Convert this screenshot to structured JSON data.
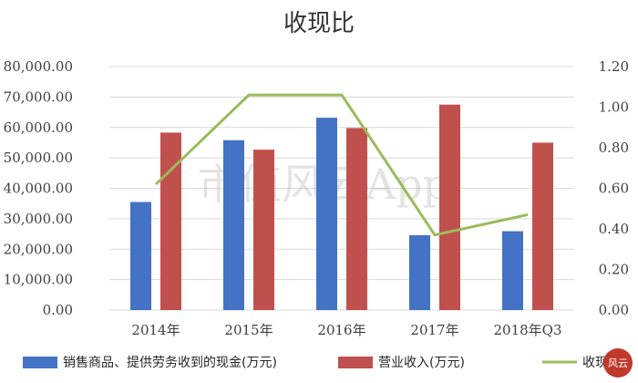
{
  "chart_data": {
    "type": "bar",
    "title": "收现比",
    "categories": [
      "2014年",
      "2015年",
      "2016年",
      "2017年",
      "2018年Q3"
    ],
    "series": [
      {
        "name": "销售商品、提供劳务收到的现金(万元)",
        "kind": "bar",
        "axis": "left",
        "color": "#4472C4",
        "values": [
          35500,
          55800,
          63200,
          24600,
          25900
        ]
      },
      {
        "name": "营业收入(万元)",
        "kind": "bar",
        "axis": "left",
        "color": "#C0504D",
        "values": [
          58300,
          52700,
          59800,
          67500,
          55000
        ]
      },
      {
        "name": "收现",
        "kind": "line",
        "axis": "right",
        "color": "#9BBB59",
        "values": [
          0.62,
          1.06,
          1.06,
          0.37,
          0.47
        ]
      }
    ],
    "y_left": {
      "min": 0,
      "max": 80000,
      "ticks": [
        "0.00",
        "10,000.00",
        "20,000.00",
        "30,000.00",
        "40,000.00",
        "50,000.00",
        "60,000.00",
        "70,000.00",
        "80,000.00"
      ]
    },
    "y_right": {
      "min": 0,
      "max": 1.2,
      "ticks": [
        "0.00",
        "0.20",
        "0.40",
        "0.60",
        "0.80",
        "1.00",
        "1.20"
      ]
    },
    "grid": true,
    "legend_position": "bottom"
  },
  "watermark": "市值风云App",
  "seal": "风云"
}
